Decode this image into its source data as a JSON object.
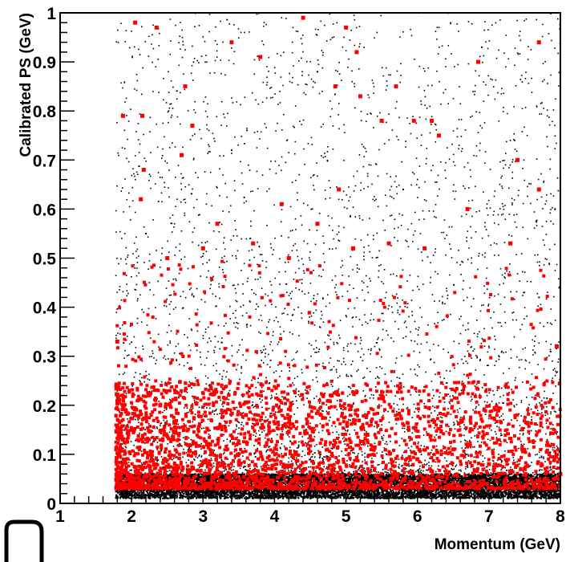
{
  "chart_data": {
    "type": "scatter",
    "xlabel": "Momentum (GeV)",
    "ylabel": "Calibrated PS  (GeV)",
    "xlim": [
      1,
      8
    ],
    "ylim": [
      0,
      1
    ],
    "x_ticks": [
      "1",
      "2",
      "3",
      "4",
      "5",
      "6",
      "7",
      "8"
    ],
    "y_ticks": [
      "0",
      "0.1",
      "0.2",
      "0.3",
      "0.4",
      "0.5",
      "0.6",
      "0.7",
      "0.8",
      "0.9",
      "1"
    ],
    "x_threshold": 1.78,
    "series": [
      {
        "color": "#000000",
        "marker": "dot",
        "distribution": "dense band at 0.01-0.06 across x 1.78-8, sparse scatter up to 1.0",
        "points": [
          [
            1.8,
            0.03
          ],
          [
            2.0,
            0.04
          ],
          [
            2.5,
            0.02
          ],
          [
            3.0,
            0.05
          ],
          [
            3.5,
            0.03
          ],
          [
            4.0,
            0.04
          ],
          [
            4.5,
            0.02
          ],
          [
            5.0,
            0.05
          ],
          [
            5.5,
            0.03
          ],
          [
            6.0,
            0.04
          ],
          [
            6.5,
            0.02
          ],
          [
            7.0,
            0.05
          ],
          [
            7.5,
            0.03
          ],
          [
            8.0,
            0.04
          ],
          [
            2.2,
            0.55
          ],
          [
            3.4,
            0.72
          ],
          [
            4.6,
            0.88
          ],
          [
            5.8,
            0.64
          ],
          [
            6.9,
            0.93
          ],
          [
            7.7,
            0.42
          ]
        ]
      },
      {
        "color": "#ff0000",
        "marker": "square",
        "distribution": "dense at x 1.78-5.5, y 0.02-0.25, sparse up to 1.0",
        "points": [
          [
            1.8,
            0.33
          ],
          [
            1.88,
            0.79
          ],
          [
            2.05,
            0.98
          ],
          [
            2.13,
            0.62
          ],
          [
            2.15,
            0.79
          ],
          [
            2.17,
            0.68
          ],
          [
            2.35,
            0.97
          ],
          [
            2.7,
            0.71
          ],
          [
            2.75,
            0.85
          ],
          [
            2.85,
            0.77
          ],
          [
            3.4,
            0.94
          ],
          [
            3.8,
            0.91
          ],
          [
            4.1,
            0.61
          ],
          [
            4.4,
            0.99
          ],
          [
            4.85,
            0.85
          ],
          [
            4.9,
            0.64
          ],
          [
            5.0,
            0.97
          ],
          [
            5.15,
            0.92
          ],
          [
            5.2,
            0.83
          ],
          [
            5.5,
            0.78
          ],
          [
            5.7,
            0.85
          ],
          [
            5.95,
            0.78
          ],
          [
            6.2,
            0.78
          ],
          [
            6.3,
            0.75
          ],
          [
            6.85,
            0.9
          ],
          [
            7.4,
            0.7
          ],
          [
            7.7,
            0.94
          ],
          [
            7.7,
            0.64
          ],
          [
            2.5,
            0.5
          ],
          [
            3.0,
            0.52
          ],
          [
            3.2,
            0.57
          ],
          [
            3.7,
            0.53
          ],
          [
            4.2,
            0.5
          ],
          [
            4.6,
            0.57
          ],
          [
            5.1,
            0.52
          ],
          [
            5.6,
            0.53
          ],
          [
            6.1,
            0.52
          ],
          [
            6.7,
            0.6
          ],
          [
            7.3,
            0.53
          ],
          [
            7.95,
            0.32
          ],
          [
            2.0,
            0.15
          ],
          [
            2.4,
            0.2
          ],
          [
            3.1,
            0.12
          ],
          [
            3.6,
            0.18
          ],
          [
            4.3,
            0.1
          ],
          [
            4.8,
            0.22
          ],
          [
            5.3,
            0.14
          ],
          [
            6.0,
            0.09
          ],
          [
            6.5,
            0.11
          ],
          [
            7.0,
            0.08
          ],
          [
            7.5,
            0.07
          ],
          [
            8.0,
            0.06
          ]
        ]
      }
    ],
    "grid": false,
    "legend": "none"
  }
}
